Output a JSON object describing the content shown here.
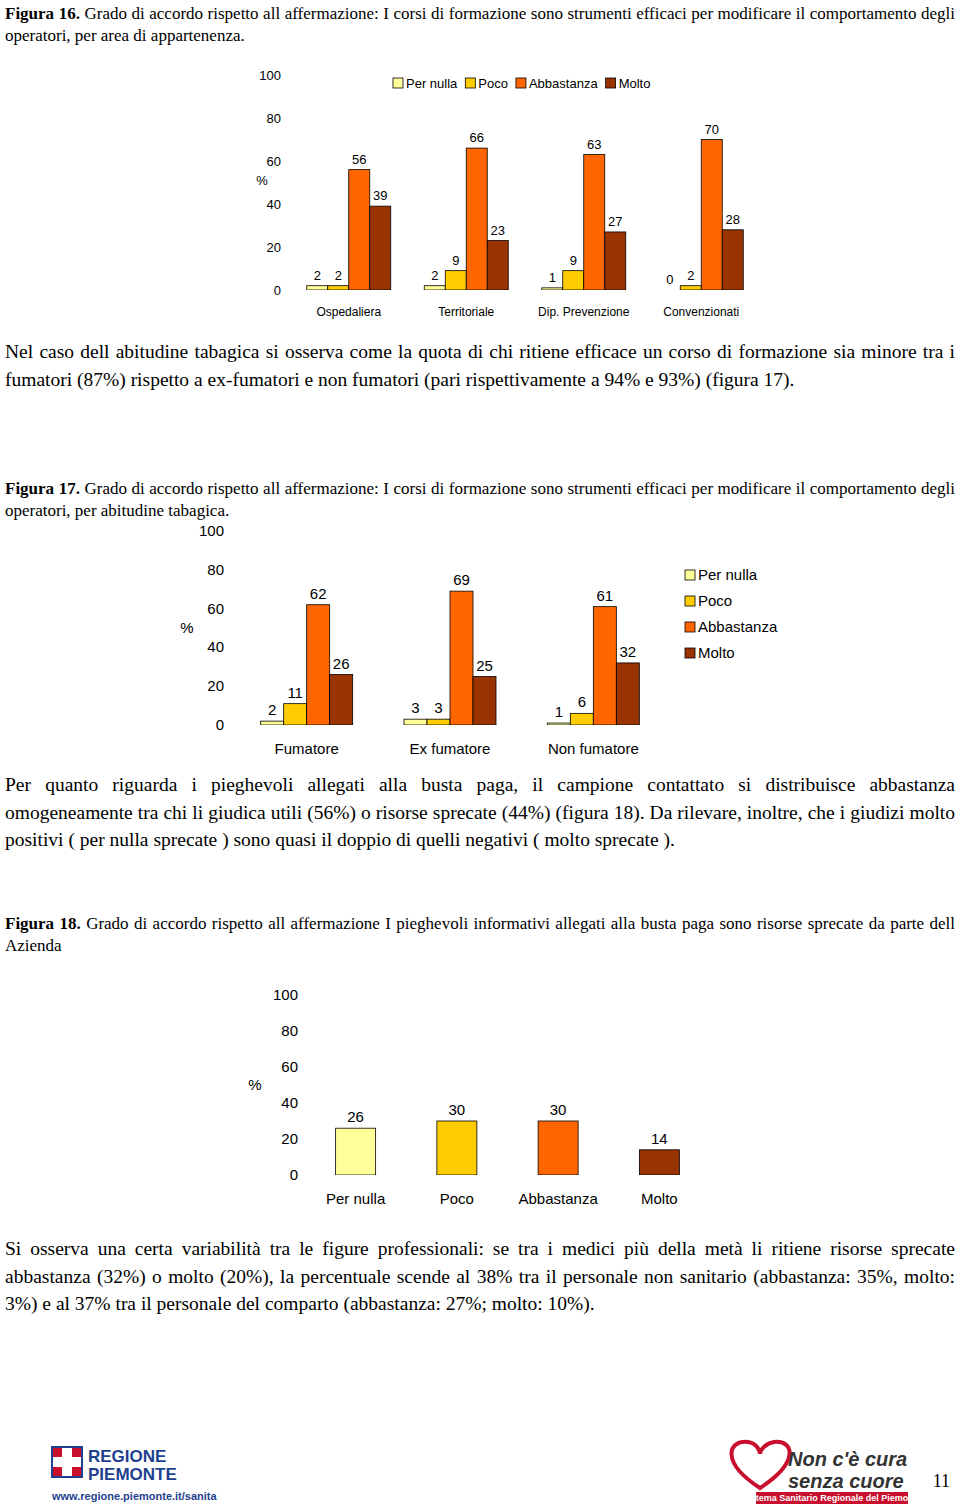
{
  "chart_data": [
    {
      "type": "bar",
      "figure_label": "Figura 16.",
      "title": "Grado di accordo rispetto all affermazione: I corsi di formazione sono strumenti efficaci per  modificare il comportamento degli operatori, per area di appartenenza.",
      "ylabel": "%",
      "categories": [
        "Ospedaliera",
        "Territoriale",
        "Dip. Prevenzione",
        "Convenzionati"
      ],
      "series": [
        {
          "name": "Per nulla",
          "color": "#FFFF99",
          "values": [
            2,
            2,
            1,
            0
          ]
        },
        {
          "name": "Poco",
          "color": "#FFCC00",
          "values": [
            2,
            9,
            9,
            2
          ]
        },
        {
          "name": "Abbastanza",
          "color": "#FF6600",
          "values": [
            56,
            66,
            63,
            70
          ]
        },
        {
          "name": "Molto",
          "color": "#993300",
          "values": [
            39,
            23,
            27,
            28
          ]
        }
      ],
      "ylim": [
        0,
        100
      ],
      "yticks": [
        0,
        20,
        40,
        60,
        80,
        100
      ],
      "grid": false,
      "legend": "top",
      "data_labels": true
    },
    {
      "type": "bar",
      "figure_label": "Figura 17.",
      "title": "Grado di accordo rispetto all affermazione: I corsi di formazione sono strumenti efficaci per  modificare il comportamento degli operatori, per abitudine tabagica.",
      "ylabel": "%",
      "categories": [
        "Fumatore",
        "Ex fumatore",
        "Non fumatore"
      ],
      "series": [
        {
          "name": "Per nulla",
          "color": "#FFFF99",
          "values": [
            2,
            3,
            1
          ]
        },
        {
          "name": "Poco",
          "color": "#FFCC00",
          "values": [
            11,
            3,
            6
          ]
        },
        {
          "name": "Abbastanza",
          "color": "#FF6600",
          "values": [
            62,
            69,
            61
          ]
        },
        {
          "name": "Molto",
          "color": "#993300",
          "values": [
            26,
            25,
            32
          ]
        }
      ],
      "ylim": [
        0,
        100
      ],
      "yticks": [
        0,
        20,
        40,
        60,
        80,
        100
      ],
      "grid": false,
      "legend": "right",
      "data_labels": true
    },
    {
      "type": "bar",
      "figure_label": "Figura 18.",
      "title": "Grado di accordo rispetto all affermazione I pieghevoli informativi allegati alla busta paga sono risorse sprecate da parte dell Azienda",
      "ylabel": "%",
      "categories": [
        "Per nulla",
        "Poco",
        "Abbastanza",
        "Molto"
      ],
      "values": [
        26,
        30,
        30,
        14
      ],
      "colors": [
        "#FFFF99",
        "#FFCC00",
        "#FF6600",
        "#993300"
      ],
      "ylim": [
        0,
        100
      ],
      "yticks": [
        0,
        20,
        40,
        60,
        80,
        100
      ],
      "grid": false,
      "data_labels": true
    }
  ],
  "paragraphs": [
    "Nel caso dell abitudine tabagica si osserva come la quota di chi ritiene efficace un corso di formazione sia minore tra i fumatori (87%) rispetto a ex-fumatori e non fumatori (pari rispettivamente a 94% e 93%) (figura 17).",
    "Per quanto riguarda i pieghevoli allegati alla busta paga, il campione contattato si distribuisce abbastanza omogeneamente tra chi li giudica utili (56%) o risorse sprecate (44%) (figura 18). Da rilevare, inoltre, che i giudizi molto positivi ( per nulla sprecate ) sono quasi il doppio di quelli negativi ( molto sprecate ).",
    "Si osserva una certa variabilità tra le figure professionali: se tra i medici più della metà li ritiene risorse sprecate abbastanza (32%) o molto (20%), la percentuale scende al 38% tra il personale non sanitario (abbastanza: 35%, molto: 3%) e al 37% tra il personale del comparto (abbastanza: 27%; molto: 10%)."
  ],
  "footer": {
    "region": [
      "REGIONE",
      "PIEMONTE"
    ],
    "url": "www.regione.piemonte.it/sanita",
    "slogan": [
      "Non c'è cura",
      "senza cuore"
    ],
    "system": "Sistema Sanitario Regionale del Piemonte",
    "page": 11
  }
}
